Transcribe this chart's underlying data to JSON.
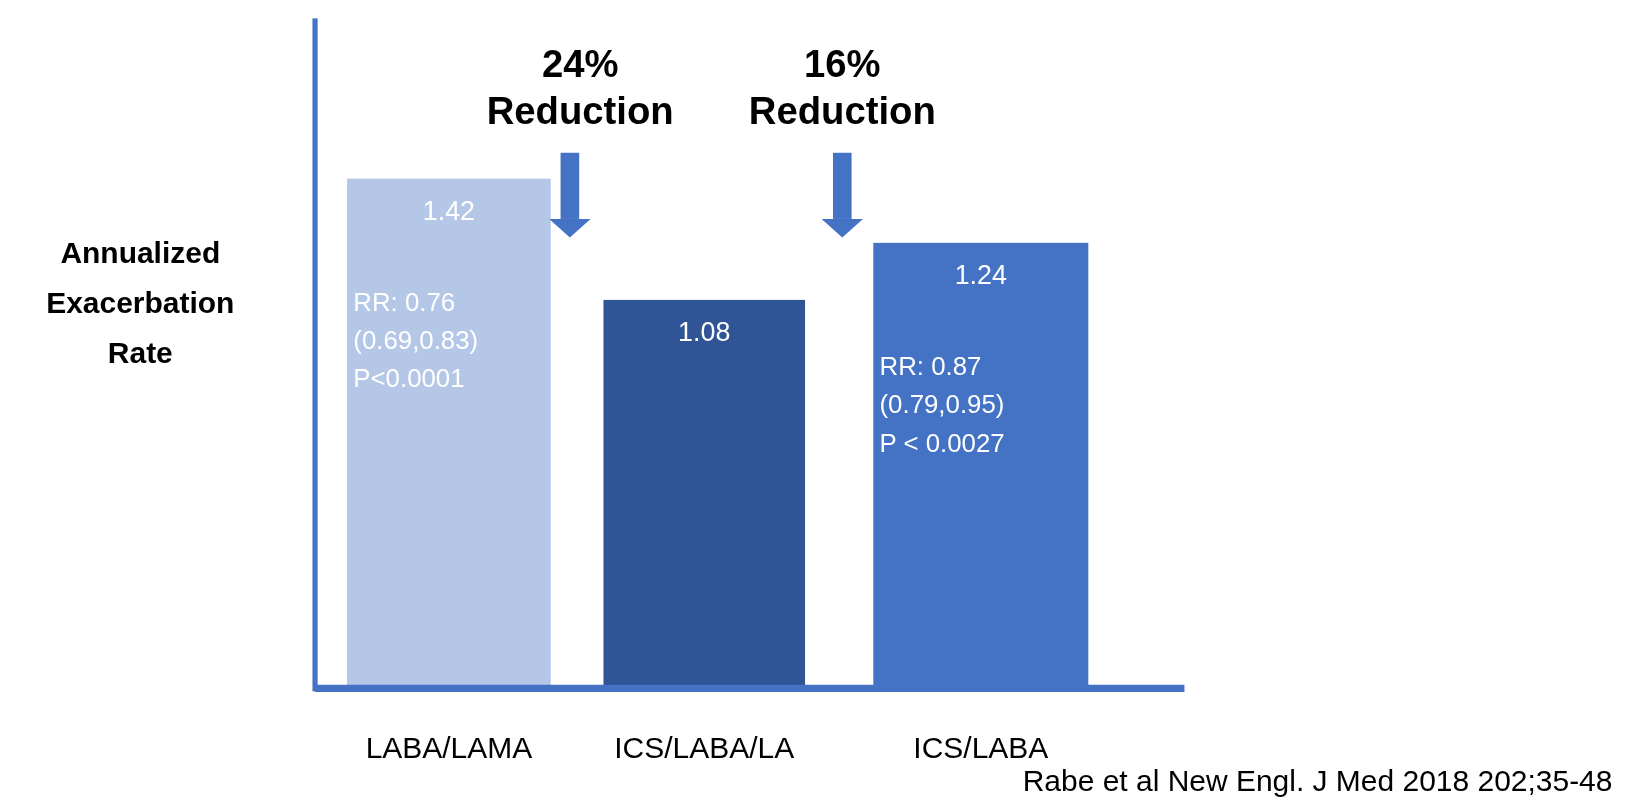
{
  "chart_data": {
    "type": "bar",
    "ylabel": "Annualized\nExacerbation\nRate",
    "categories": [
      "LABA/LAMA",
      "ICS/LABA/LA",
      "ICS/LABA"
    ],
    "values": [
      1.42,
      1.08,
      1.24
    ],
    "colors": [
      "#b4c7e7",
      "#2f5597",
      "#4472c4"
    ],
    "data_labels": true,
    "annotations": [
      "RR: 0.76\n(0.69,0.83)\nP<0.0001",
      "RR: 0.87\n(0.79,0.95)\nP < 0.0027",
      "24%\nReduction",
      "16%\nReduction",
      "Rabe et al New Engl. J Med 2018 202;35-48"
    ]
  }
}
